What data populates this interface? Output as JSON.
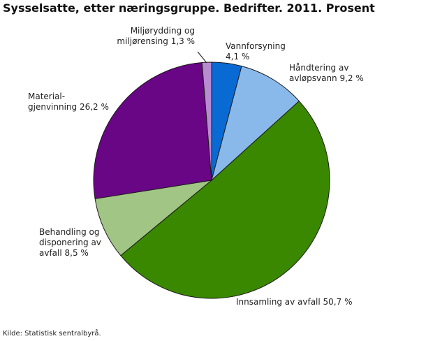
{
  "header": {
    "title": "Sysselsatte, etter næringsgruppe. Bedrifter. 2011. Prosent"
  },
  "footer": {
    "source": "Kilde: Statistisk sentralbyrå."
  },
  "chart_data": {
    "type": "pie",
    "title": "Sysselsatte, etter næringsgruppe. Bedrifter. 2011. Prosent",
    "slices": [
      {
        "name": "Vannforsyning",
        "value": 4.1,
        "color": "#0a6ad4",
        "label_lines": [
          "Vannforsyning",
          "4,1 %"
        ]
      },
      {
        "name": "Håndtering av avløpsvann",
        "value": 9.2,
        "color": "#89b9ea",
        "label_lines": [
          "Håndtering av",
          "avløpsvann 9,2 %"
        ]
      },
      {
        "name": "Innsamling av avfall",
        "value": 50.7,
        "color": "#3a8700",
        "label_lines": [
          "Innsamling av avfall 50,7 %"
        ]
      },
      {
        "name": "Behandling og disponering av avfall",
        "value": 8.5,
        "color": "#a0c585",
        "label_lines": [
          "Behandling og",
          "disponering av",
          "avfall 8,5 %"
        ]
      },
      {
        "name": "Material-gjenvinning",
        "value": 26.2,
        "color": "#690685",
        "label_lines": [
          "Material-",
          "gjenvinning 26,2 %"
        ]
      },
      {
        "name": "Miljørydding og miljørensing",
        "value": 1.3,
        "color": "#b98bd1",
        "label_lines": [
          "Miljørydding og",
          "miljørensing 1,3  %"
        ]
      }
    ]
  }
}
